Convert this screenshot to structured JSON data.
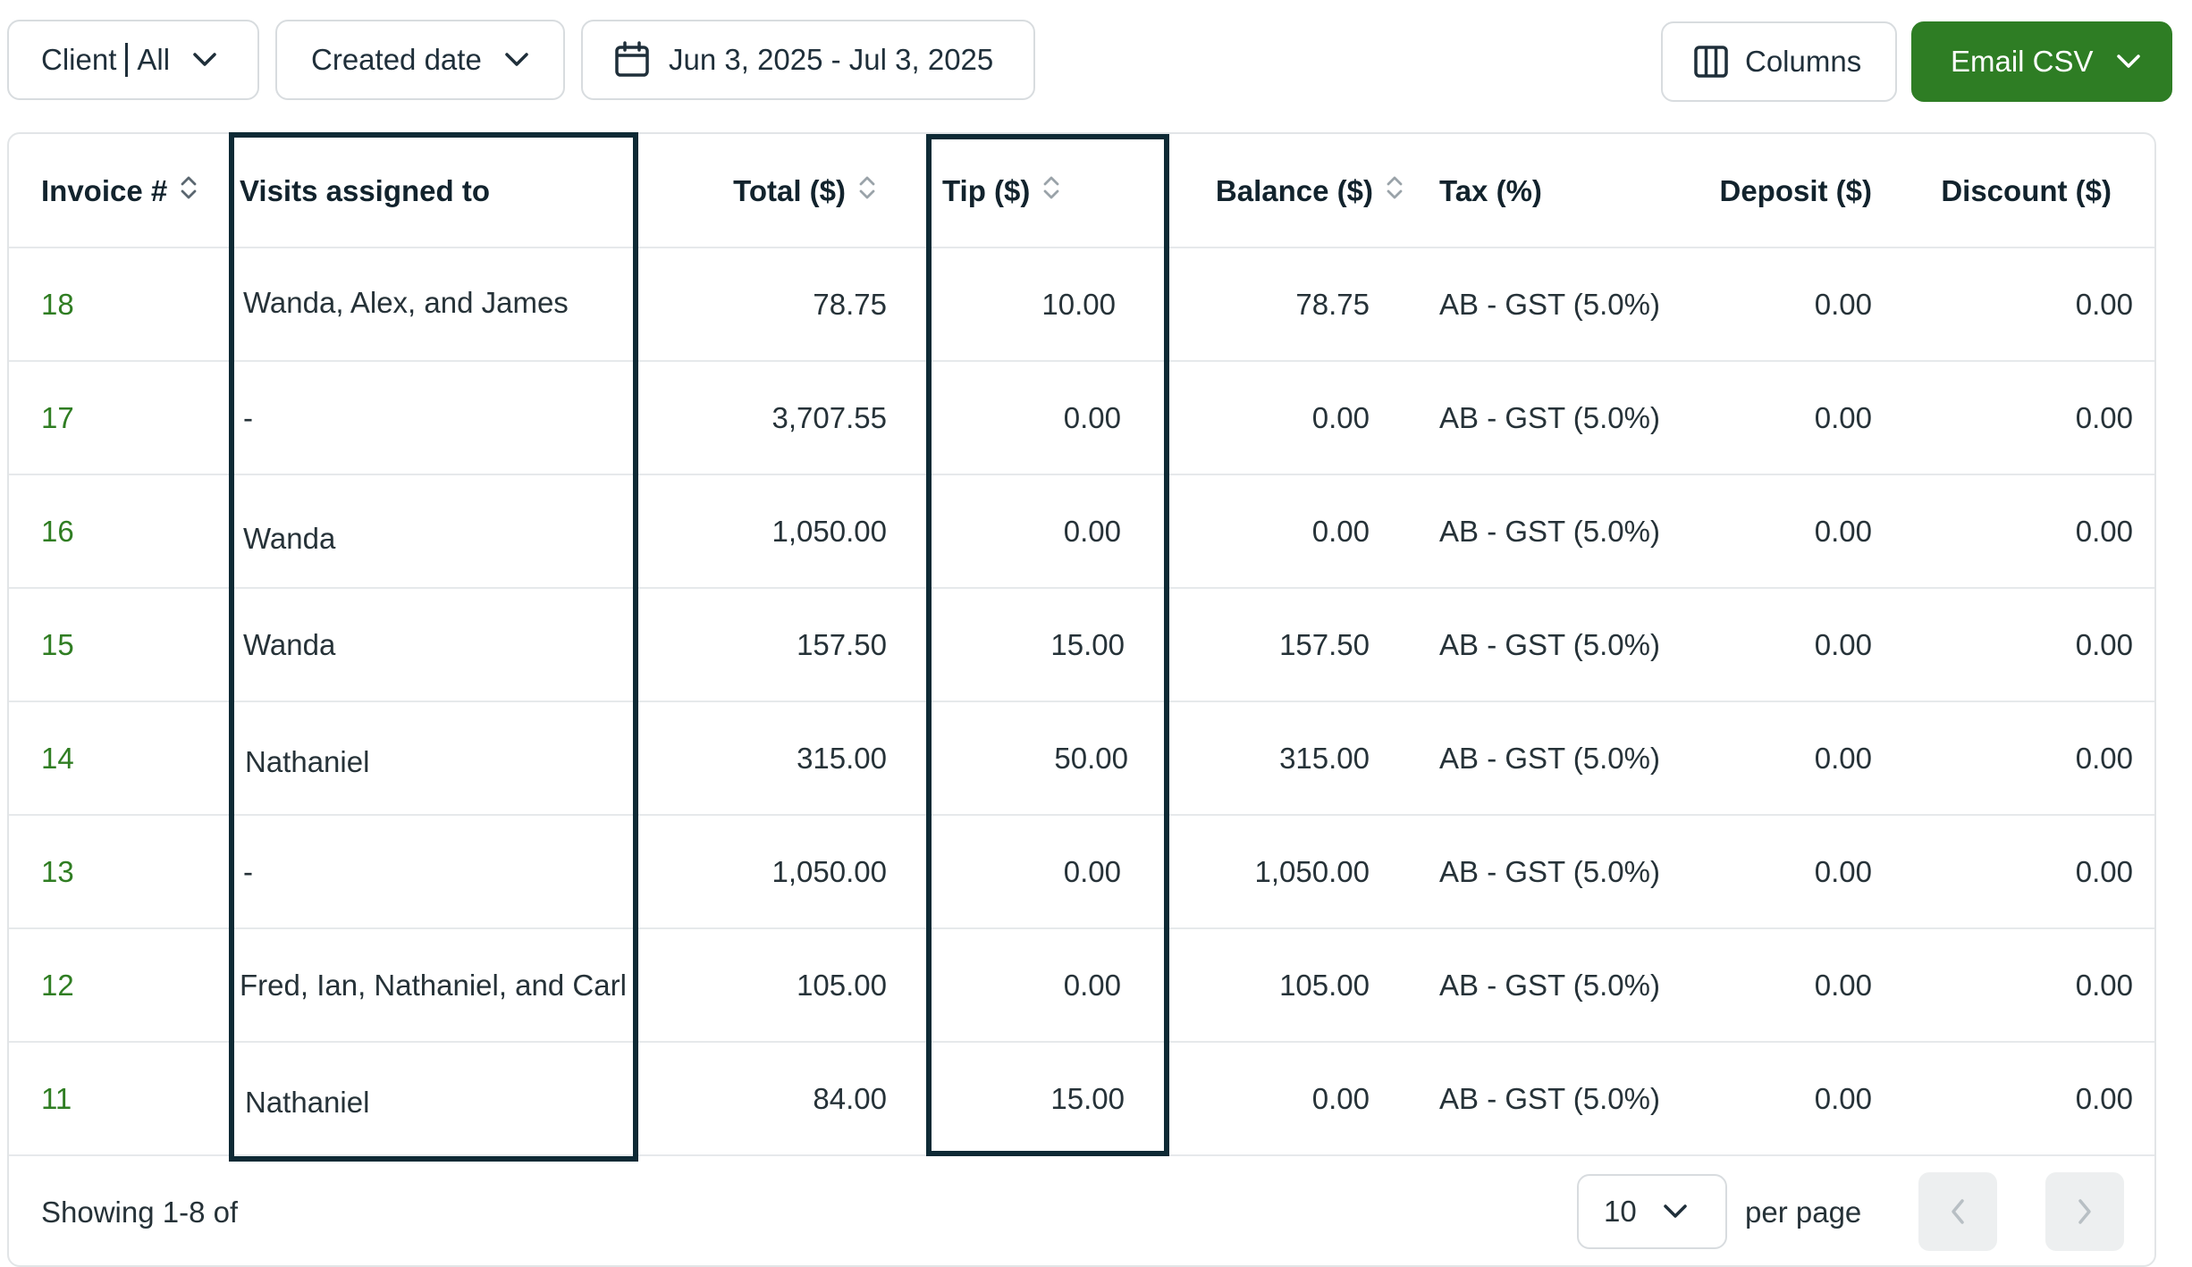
{
  "toolbar": {
    "client_label": "Client",
    "client_value": "All",
    "created_label": "Created date",
    "date_range": "Jun 3, 2025 - Jul 3, 2025",
    "columns_label": "Columns",
    "email_label": "Email CSV"
  },
  "table": {
    "headers": {
      "invoice": "Invoice #",
      "visits": "Visits assigned to",
      "total": "Total ($)",
      "tip": "Tip ($)",
      "balance": "Balance ($)",
      "tax": "Tax (%)",
      "deposit": "Deposit ($)",
      "discount": "Discount ($)"
    },
    "rows": [
      {
        "invoice": "18",
        "visits": "Wanda, Alex, and James",
        "total": "78.75",
        "tip": "10.00",
        "balance": "78.75",
        "tax": "AB - GST (5.0%)",
        "deposit": "0.00",
        "discount": "0.00"
      },
      {
        "invoice": "17",
        "visits": "-",
        "total": "3,707.55",
        "tip": "0.00",
        "balance": "0.00",
        "tax": "AB - GST (5.0%)",
        "deposit": "0.00",
        "discount": "0.00"
      },
      {
        "invoice": "16",
        "visits": "Wanda",
        "total": "1,050.00",
        "tip": "0.00",
        "balance": "0.00",
        "tax": "AB - GST (5.0%)",
        "deposit": "0.00",
        "discount": "0.00"
      },
      {
        "invoice": "15",
        "visits": "Wanda",
        "total": "157.50",
        "tip": "15.00",
        "balance": "157.50",
        "tax": "AB - GST (5.0%)",
        "deposit": "0.00",
        "discount": "0.00"
      },
      {
        "invoice": "14",
        "visits": "Nathaniel",
        "total": "315.00",
        "tip": "50.00",
        "balance": "315.00",
        "tax": "AB - GST (5.0%)",
        "deposit": "0.00",
        "discount": "0.00"
      },
      {
        "invoice": "13",
        "visits": "-",
        "total": "1,050.00",
        "tip": "0.00",
        "balance": "1,050.00",
        "tax": "AB - GST (5.0%)",
        "deposit": "0.00",
        "discount": "0.00"
      },
      {
        "invoice": "12",
        "visits": "Fred, Ian, Nathaniel, and Carl",
        "total": "105.00",
        "tip": "0.00",
        "balance": "105.00",
        "tax": "AB - GST (5.0%)",
        "deposit": "0.00",
        "discount": "0.00"
      },
      {
        "invoice": "11",
        "visits": "Nathaniel",
        "total": "84.00",
        "tip": "15.00",
        "balance": "0.00",
        "tax": "AB - GST (5.0%)",
        "deposit": "0.00",
        "discount": "0.00"
      }
    ]
  },
  "footer": {
    "showing": "Showing 1-8 of",
    "per_page_value": "10",
    "per_page_label": "per page"
  },
  "colors": {
    "accent": "#2e7d24",
    "link": "#2f7d22",
    "highlight_border": "#0e2a35"
  },
  "icons": {
    "client_dropdown": "chevron-down-icon",
    "created_dropdown": "chevron-down-icon",
    "date_range": "calendar-icon",
    "columns": "columns-icon",
    "email_dropdown": "chevron-down-icon",
    "sort": "sort-icon",
    "per_page_dropdown": "chevron-down-icon",
    "prev": "chevron-left-icon",
    "next": "chevron-right-icon"
  }
}
